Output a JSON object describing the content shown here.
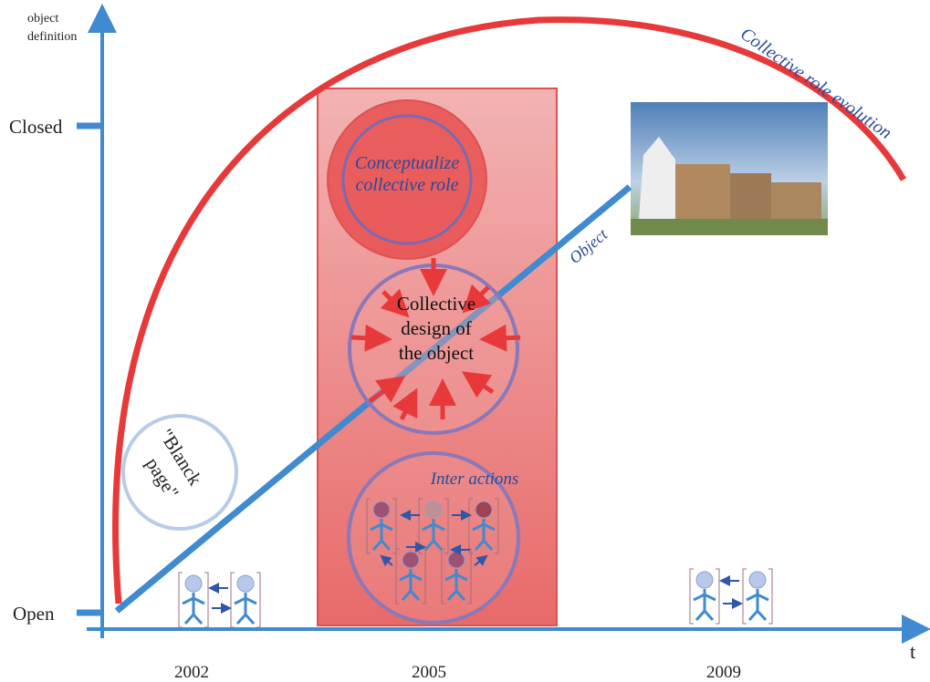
{
  "axes": {
    "y_label": [
      "object",
      "definition"
    ],
    "y_levels": [
      "Closed",
      "Open"
    ],
    "x_label": "t",
    "years": [
      "2002",
      "2005",
      "2009"
    ]
  },
  "curves": {
    "role": "Collective role evolution",
    "object": "Object"
  },
  "nodes": [
    {
      "label": [
        "Conceptualize",
        "collective role"
      ]
    },
    {
      "label": [
        "Collective",
        "design of",
        "the object"
      ]
    },
    {
      "label": [
        "Inter actions"
      ]
    },
    {
      "label": [
        "\"Blanck",
        "page\""
      ]
    }
  ]
}
